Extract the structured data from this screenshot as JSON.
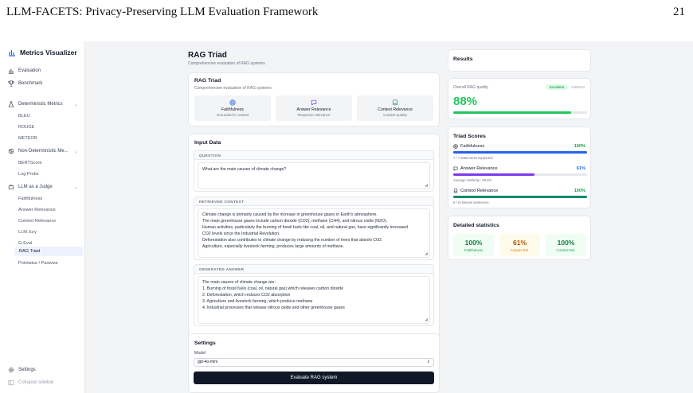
{
  "paper": {
    "title": "LLM-FACETS: Privacy-Preserving LLM Evaluation Framework",
    "page_number": "21"
  },
  "sidebar": {
    "brand": "Metrics Visualizer",
    "items": [
      {
        "label": "Evaluation",
        "icon": "bar-chart-icon"
      },
      {
        "label": "Benchmark",
        "icon": "trophy-icon"
      },
      {
        "label": "Deterministic Metrics",
        "icon": "flask-icon"
      },
      {
        "label": "Non-Deterministic Me...",
        "icon": "brain-icon"
      },
      {
        "label": "LLM as a Judge",
        "icon": "robot-icon"
      }
    ],
    "deterministic_sub": [
      "BLEU",
      "ROUGE",
      "METEOR"
    ],
    "nondeterministic_sub": [
      "BERTScore",
      "Log Probs"
    ],
    "judge_sub": [
      "Faithfulness",
      "Answer Relevance",
      "Context Relevance",
      "LLM Jury",
      "G-Eval",
      "RAG Triad",
      "Pointwise / Pairwise"
    ],
    "active": "RAG Triad",
    "settings_label": "Settings",
    "collapse_label": "Collapse sidebar"
  },
  "header": {
    "title": "RAG Triad",
    "subtitle": "Comprehensive evaluation of RAG systems"
  },
  "triad_card": {
    "title": "RAG Triad",
    "subtitle": "Comprehensive evaluation of RAG systems",
    "metrics": [
      {
        "label": "Faithfulness",
        "desc": "Grounded in context"
      },
      {
        "label": "Answer Relevance",
        "desc": "Response relevance"
      },
      {
        "label": "Context Relevance",
        "desc": "Context quality"
      }
    ]
  },
  "input": {
    "title": "Input Data",
    "question_head": "QUESTION",
    "question": "What are the main causes of climate change?",
    "context_head": "RETRIEVED CONTEXT",
    "context_lines": [
      "Climate change is primarily caused by the increase in greenhouse gases in Earth's atmosphere.",
      "The main greenhouse gases include carbon dioxide (CO2), methane (CH4), and nitrous oxide (N2O).",
      "Human activities, particularly the burning of fossil fuels like coal, oil, and natural gas, have significantly increased",
      "CO2 levels since the Industrial Revolution.",
      "Deforestation also contributes to climate change by reducing the number of trees that absorb CO2.",
      "Agriculture, especially livestock farming, produces large amounts of methane."
    ],
    "answer_head": "GENERATED ANSWER",
    "answer_lines": [
      "The main causes of climate change are:",
      "1. Burning of fossil fuels (coal, oil, natural gas) which releases carbon dioxide",
      "2. Deforestation, which reduces CO2 absorption",
      "3. Agriculture and livestock farming, which produce methane",
      "4. Industrial processes that release nitrous oxide and other greenhouse gases"
    ]
  },
  "settings": {
    "title": "Settings",
    "model_label": "Model",
    "model_value": "gpt-4o-mini",
    "button": "Evaluate RAG system"
  },
  "results": {
    "title": "Results",
    "overall_label": "Overall RAG quality",
    "overall_badge": "Excellent",
    "overall_time": "15802ms",
    "overall_value": "88%",
    "overall_fraction": 0.88,
    "triad_title": "Triad Scores",
    "scores": [
      {
        "label": "Faithfulness",
        "value": "100%",
        "fraction": 1.0,
        "note": "7 / 7 statements supported",
        "color": "#2563eb"
      },
      {
        "label": "Answer Relevance",
        "value": "61%",
        "fraction": 0.61,
        "note": "Average similarity : 60.8%",
        "color": "#7c3aed"
      },
      {
        "label": "Context Relevance",
        "value": "100%",
        "fraction": 1.0,
        "note": "6 / 6 relevant sentences",
        "color": "#0f8a6a"
      }
    ],
    "detail_title": "Detailed statistics",
    "stats": [
      {
        "value": "100%",
        "label": "Faithfulness"
      },
      {
        "value": "61%",
        "label": "Answer Rel."
      },
      {
        "value": "100%",
        "label": "Context Rel."
      }
    ]
  },
  "colors": {
    "accent_green": "#22c55e",
    "accent_blue": "#2563eb",
    "accent_purple": "#7c3aed",
    "accent_teal": "#0f8a6a",
    "amber": "#d97706"
  }
}
